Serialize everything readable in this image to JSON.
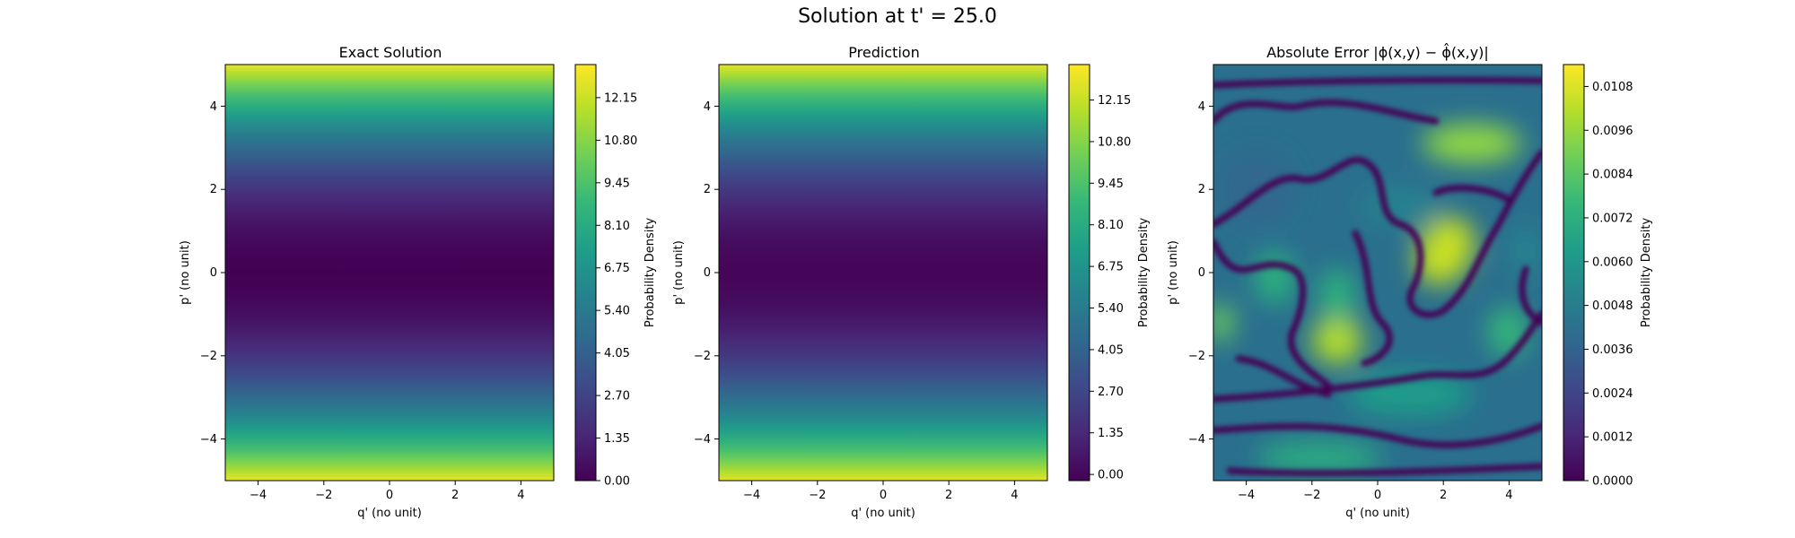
{
  "suptitle": "Solution at t' = 25.0",
  "chart_data": [
    {
      "type": "heatmap",
      "title": "Exact Solution",
      "xlabel": "q' (no unit)",
      "ylabel": "p' (no unit)",
      "xlim": [
        -5,
        5
      ],
      "ylim": [
        -5,
        5
      ],
      "xticks": [
        "−4",
        "−2",
        "0",
        "2",
        "4"
      ],
      "yticks": [
        "−4",
        "−2",
        "0",
        "2",
        "4"
      ],
      "colorbar": {
        "label": "Probability Density",
        "range": [
          0,
          13.2
        ],
        "ticks": [
          "0.00",
          "1.35",
          "2.70",
          "4.05",
          "5.40",
          "6.75",
          "8.10",
          "9.45",
          "10.80",
          "12.15"
        ],
        "tick_values": [
          0,
          1.35,
          2.7,
          4.05,
          5.4,
          6.75,
          8.1,
          9.45,
          10.8,
          12.15
        ]
      },
      "field": "p'^2 / 2 (constant along q')"
    },
    {
      "type": "heatmap",
      "title": "Prediction",
      "xlabel": "q' (no unit)",
      "ylabel": "p' (no unit)",
      "xlim": [
        -5,
        5
      ],
      "ylim": [
        -5,
        5
      ],
      "xticks": [
        "−4",
        "−2",
        "0",
        "2",
        "4"
      ],
      "yticks": [
        "−4",
        "−2",
        "0",
        "2",
        "4"
      ],
      "colorbar": {
        "label": "Probability Density",
        "range": [
          -0.2,
          13.3
        ],
        "ticks": [
          "0.00",
          "1.35",
          "2.70",
          "4.05",
          "5.40",
          "6.75",
          "8.10",
          "9.45",
          "10.80",
          "12.15"
        ],
        "tick_values": [
          0,
          1.35,
          2.7,
          4.05,
          5.4,
          6.75,
          8.1,
          9.45,
          10.8,
          12.15
        ]
      },
      "field": "p'^2 / 2 (constant along q')"
    },
    {
      "type": "heatmap",
      "title": "Absolute Error |ϕ(x,y) − ϕ̂(x,y)|",
      "xlabel": "q' (no unit)",
      "ylabel": "p' (no unit)",
      "xlim": [
        -5,
        5
      ],
      "ylim": [
        -5,
        5
      ],
      "xticks": [
        "−4",
        "−2",
        "0",
        "2",
        "4"
      ],
      "yticks": [
        "−4",
        "−2",
        "0",
        "2",
        "4"
      ],
      "colorbar": {
        "label": "Probability Density",
        "range": [
          0,
          0.0114
        ],
        "ticks": [
          "0.0000",
          "0.0012",
          "0.0024",
          "0.0036",
          "0.0048",
          "0.0060",
          "0.0072",
          "0.0084",
          "0.0096",
          "0.0108"
        ],
        "tick_values": [
          0,
          0.0012,
          0.0024,
          0.0036,
          0.0048,
          0.006,
          0.0072,
          0.0084,
          0.0096,
          0.0108
        ]
      },
      "hotspots": [
        {
          "q": 2.2,
          "p": 0.6,
          "value": 0.0112
        },
        {
          "q": 2.3,
          "p": 3.1,
          "value": 0.0105
        },
        {
          "q": -1.6,
          "p": -1.8,
          "value": 0.0104
        },
        {
          "q": 3.8,
          "p": -1.3,
          "value": 0.0082
        },
        {
          "q": -3.0,
          "p": 0.0,
          "value": 0.008
        },
        {
          "q": -1.8,
          "p": -0.6,
          "value": 0.0075
        },
        {
          "q": -5.0,
          "p": -1.2,
          "value": 0.007
        },
        {
          "q": 1.0,
          "p": -3.0,
          "value": 0.006
        },
        {
          "q": -2.0,
          "p": -4.5,
          "value": 0.0055
        }
      ]
    }
  ]
}
